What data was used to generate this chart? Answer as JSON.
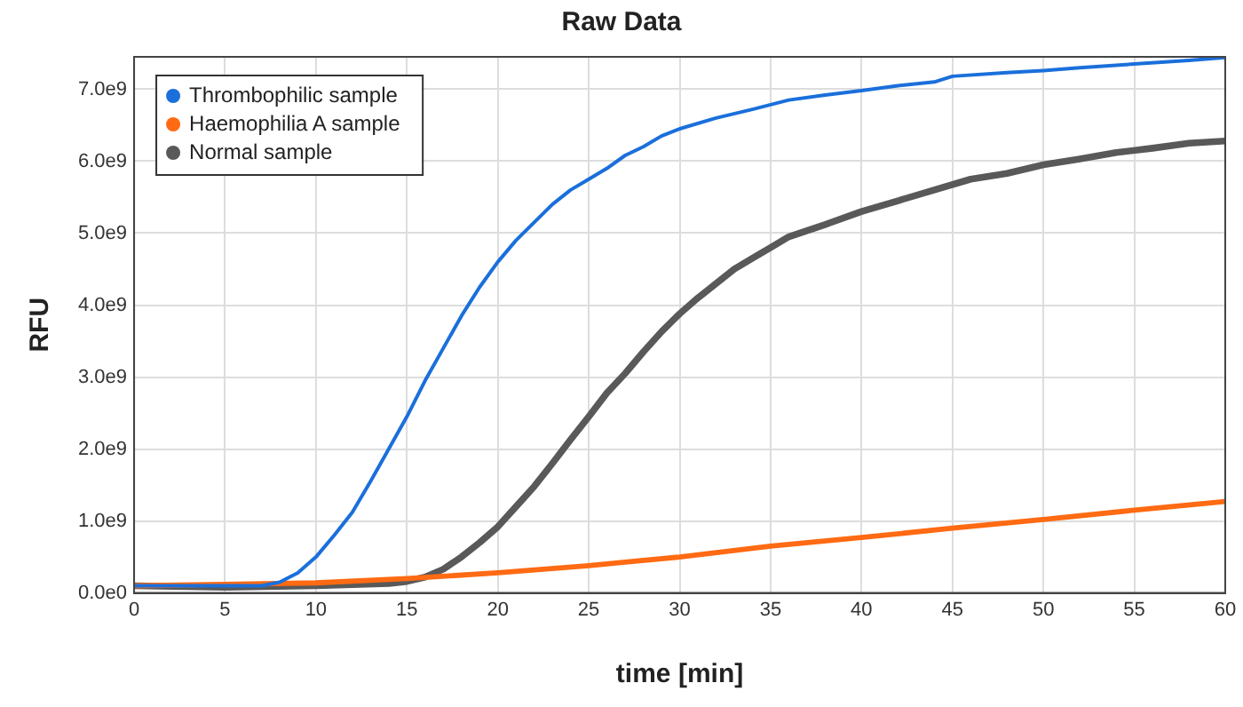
{
  "chart_data": {
    "type": "line",
    "title": "Raw Data",
    "xlabel": "time [min]",
    "ylabel": "RFU",
    "xlim": [
      0,
      60
    ],
    "xticks": [
      0,
      5,
      10,
      15,
      20,
      25,
      30,
      35,
      40,
      45,
      50,
      55,
      60
    ],
    "ylim": [
      0,
      7450000000.0
    ],
    "yticks": [
      {
        "value": 0,
        "label": "0.0e0"
      },
      {
        "value": 1000000000.0,
        "label": "1.0e9"
      },
      {
        "value": 2000000000.0,
        "label": "2.0e9"
      },
      {
        "value": 3000000000.0,
        "label": "3.0e9"
      },
      {
        "value": 4000000000.0,
        "label": "4.0e9"
      },
      {
        "value": 5000000000.0,
        "label": "5.0e9"
      },
      {
        "value": 6000000000.0,
        "label": "6.0e9"
      },
      {
        "value": 7000000000.0,
        "label": "7.0e9"
      }
    ],
    "grid": true,
    "legend": "top left",
    "marker": "none",
    "line_style": "solid",
    "series": [
      {
        "name": "Thrombophilic sample",
        "color": "#1a6fdb",
        "x": [
          0,
          5,
          7,
          8,
          9,
          10,
          11,
          12,
          13,
          14,
          15,
          16,
          17,
          18,
          19,
          20,
          21,
          22,
          23,
          24,
          25,
          26,
          27,
          28,
          29,
          30,
          32,
          34,
          36,
          38,
          40,
          42,
          44,
          45,
          48,
          50,
          52,
          55,
          58,
          60
        ],
        "values": [
          100000000.0,
          100000000.0,
          100000000.0,
          150000000.0,
          280000000.0,
          500000000.0,
          800000000.0,
          1120000000.0,
          1550000000.0,
          2000000000.0,
          2450000000.0,
          2950000000.0,
          3400000000.0,
          3850000000.0,
          4250000000.0,
          4600000000.0,
          4900000000.0,
          5150000000.0,
          5400000000.0,
          5600000000.0,
          5750000000.0,
          5900000000.0,
          6080000000.0,
          6200000000.0,
          6350000000.0,
          6450000000.0,
          6600000000.0,
          6720000000.0,
          6850000000.0,
          6920000000.0,
          6980000000.0,
          7050000000.0,
          7100000000.0,
          7180000000.0,
          7230000000.0,
          7260000000.0,
          7300000000.0,
          7350000000.0,
          7400000000.0,
          7440000000.0
        ]
      },
      {
        "name": "Haemophilia A sample",
        "color": "#ff6a13",
        "x": [
          0,
          5,
          10,
          15,
          20,
          25,
          27,
          30,
          35,
          40,
          45,
          50,
          55,
          60
        ],
        "values": [
          100000000.0,
          120000000.0,
          140000000.0,
          200000000.0,
          280000000.0,
          380000000.0,
          430000000.0,
          500000000.0,
          650000000.0,
          770000000.0,
          900000000.0,
          1020000000.0,
          1150000000.0,
          1270000000.0
        ]
      },
      {
        "name": "Normal sample",
        "color": "#595959",
        "x": [
          0,
          5,
          10,
          14,
          15,
          16,
          17,
          18,
          19,
          20,
          21,
          22,
          23,
          24,
          25,
          26,
          27,
          28,
          29,
          30,
          31,
          32,
          33,
          34,
          35,
          36,
          38,
          40,
          42,
          44,
          46,
          48,
          50,
          52,
          54,
          56,
          58,
          60
        ],
        "values": [
          100000000.0,
          80000000.0,
          100000000.0,
          130000000.0,
          160000000.0,
          220000000.0,
          330000000.0,
          500000000.0,
          700000000.0,
          920000000.0,
          1200000000.0,
          1480000000.0,
          1800000000.0,
          2130000000.0,
          2450000000.0,
          2780000000.0,
          3050000000.0,
          3350000000.0,
          3630000000.0,
          3880000000.0,
          4100000000.0,
          4300000000.0,
          4500000000.0,
          4650000000.0,
          4800000000.0,
          4950000000.0,
          5120000000.0,
          5300000000.0,
          5450000000.0,
          5600000000.0,
          5750000000.0,
          5830000000.0,
          5950000000.0,
          6030000000.0,
          6120000000.0,
          6180000000.0,
          6250000000.0,
          6280000000.0
        ]
      }
    ]
  }
}
